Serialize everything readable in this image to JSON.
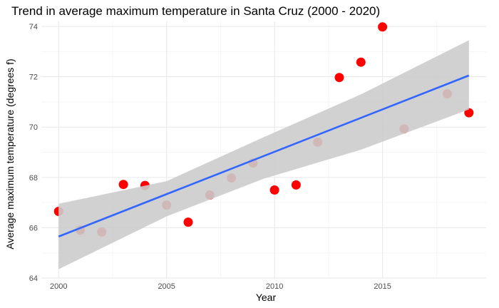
{
  "chart_data": {
    "type": "scatter",
    "title": "Trend in average maximum temperature in Santa Cruz (2000 - 2020)",
    "xlabel": "Year",
    "ylabel": "Average maximum temperature (degrees f)",
    "xlim": [
      1999.2,
      2019.8
    ],
    "ylim": [
      64,
      74.2
    ],
    "x_ticks": [
      2000,
      2005,
      2010,
      2015
    ],
    "y_ticks": [
      64,
      66,
      68,
      70,
      72,
      74
    ],
    "grid": true,
    "legend": "none",
    "points": [
      {
        "x": 2000,
        "y": 66.65
      },
      {
        "x": 2001,
        "y": 65.9
      },
      {
        "x": 2002,
        "y": 65.83
      },
      {
        "x": 2003,
        "y": 67.72
      },
      {
        "x": 2004,
        "y": 67.68
      },
      {
        "x": 2005,
        "y": 66.9
      },
      {
        "x": 2006,
        "y": 66.22
      },
      {
        "x": 2007,
        "y": 67.3
      },
      {
        "x": 2008,
        "y": 67.98
      },
      {
        "x": 2009,
        "y": 68.57
      },
      {
        "x": 2010,
        "y": 67.5
      },
      {
        "x": 2011,
        "y": 67.7
      },
      {
        "x": 2012,
        "y": 69.4
      },
      {
        "x": 2013,
        "y": 71.97
      },
      {
        "x": 2014,
        "y": 72.58
      },
      {
        "x": 2015,
        "y": 73.98
      },
      {
        "x": 2016,
        "y": 69.93
      },
      {
        "x": 2018,
        "y": 71.32
      },
      {
        "x": 2019,
        "y": 70.57
      }
    ],
    "trend_line": {
      "type": "linear",
      "x": [
        2000,
        2019
      ],
      "y": [
        65.65,
        72.05
      ],
      "confidence_band": {
        "x": [
          2000,
          2005,
          2009.5,
          2014,
          2019
        ],
        "lower": [
          64.35,
          66.45,
          67.95,
          69.1,
          70.7
        ],
        "upper": [
          66.95,
          67.85,
          69.6,
          71.3,
          73.45
        ]
      }
    },
    "colors": {
      "points": "#ff0000",
      "trend": "#3366ff",
      "band": "#cccccc",
      "grid_major": "#ebebeb",
      "grid_minor": "#f5f5f5"
    }
  }
}
